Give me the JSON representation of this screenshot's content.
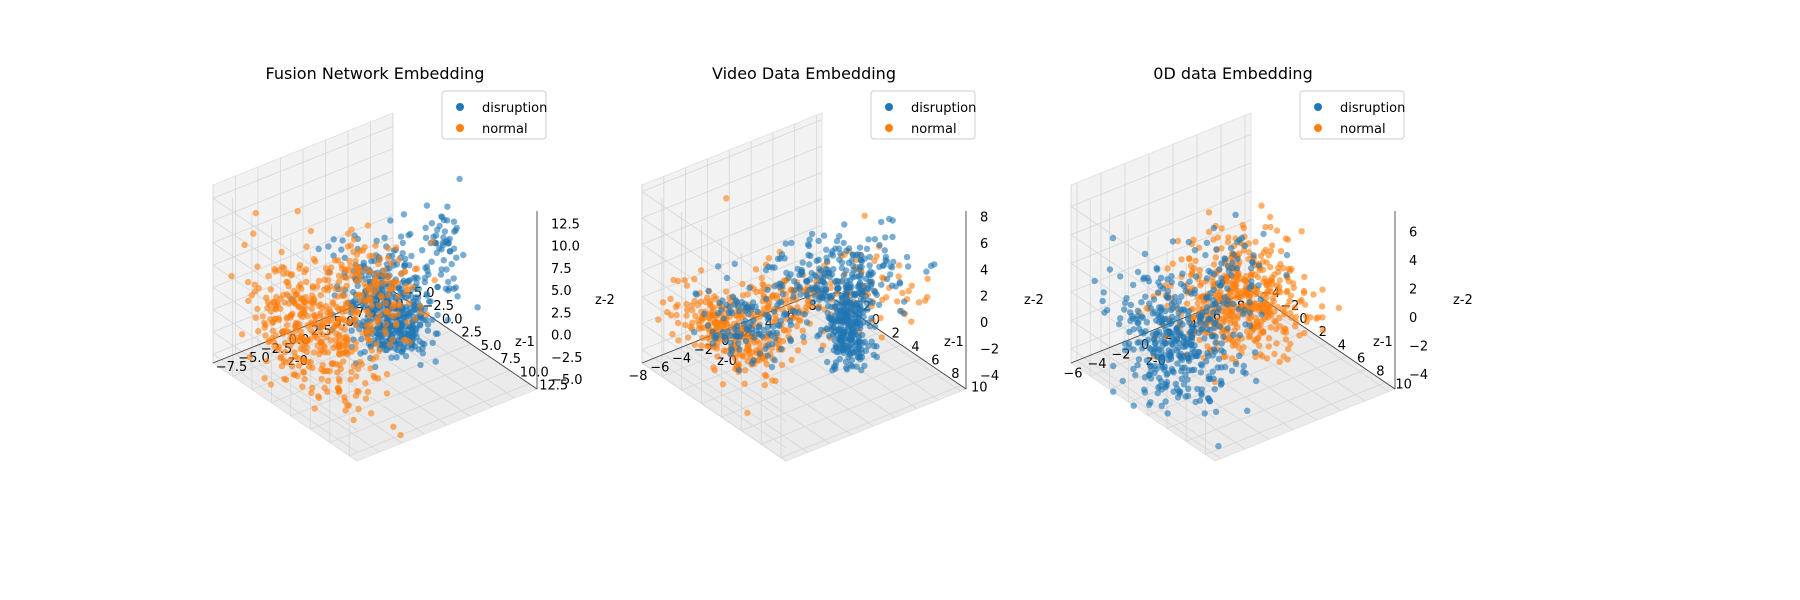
{
  "chart_data": [
    {
      "type": "scatter",
      "projection": "3d",
      "title": "Fusion Network Embedding",
      "xlabel": "z-0",
      "ylabel": "z-1",
      "zlabel": "z-2",
      "xlim": [
        -10,
        10
      ],
      "ylim": [
        -5,
        13.5
      ],
      "zlim": [
        -6,
        14
      ],
      "xticks": [
        "−7.5",
        "−5.0",
        "−2.5",
        "0.0",
        "2.5",
        "5.0",
        "7.5",
        "10.0"
      ],
      "yticks": [
        "−5.0",
        "−2.5",
        "0.0",
        "2.5",
        "5.0",
        "7.5",
        "10.0",
        "12.5"
      ],
      "zticks": [
        "−5.0",
        "−2.5",
        "0.0",
        "2.5",
        "5.0",
        "7.5",
        "10.0",
        "12.5"
      ],
      "grid": true,
      "legend_position": "upper-right",
      "series": [
        {
          "name": "disruption",
          "color": "#1f77b4",
          "clusters": [
            {
              "center": [
                4.5,
                1.5,
                -4.0
              ],
              "spread": [
                1.4,
                1.2,
                1.5
              ],
              "n": 220
            },
            {
              "center": [
                1.5,
                4.0,
                2.5
              ],
              "spread": [
                2.5,
                2.5,
                2.5
              ],
              "n": 260
            },
            {
              "center": [
                6.0,
                6.0,
                7.0
              ],
              "spread": [
                0.8,
                0.8,
                2.5
              ],
              "n": 50
            }
          ]
        },
        {
          "name": "normal",
          "color": "#ff7f0e",
          "clusters": [
            {
              "center": [
                -6.0,
                3.0,
                1.0
              ],
              "spread": [
                1.5,
                3.5,
                3.5
              ],
              "n": 360
            },
            {
              "center": [
                -2.0,
                6.0,
                5.0
              ],
              "spread": [
                2.0,
                2.0,
                3.0
              ],
              "n": 180
            }
          ]
        }
      ]
    },
    {
      "type": "scatter",
      "projection": "3d",
      "title": "Video Data Embedding",
      "xlabel": "z-0",
      "ylabel": "z-1",
      "zlabel": "z-2",
      "xlim": [
        -8,
        8.5
      ],
      "ylim": [
        -4,
        10.5
      ],
      "zlim": [
        -5,
        8.5
      ],
      "xticks": [
        "−8",
        "−6",
        "−4",
        "−2",
        "0",
        "2",
        "4",
        "6",
        "8"
      ],
      "yticks": [
        "−4",
        "−2",
        "0",
        "2",
        "4",
        "6",
        "8",
        "10"
      ],
      "zticks": [
        "−4",
        "−2",
        "0",
        "2",
        "4",
        "6",
        "8"
      ],
      "grid": true,
      "legend_position": "upper-right",
      "series": [
        {
          "name": "normal",
          "color": "#ff7f0e",
          "clusters": [
            {
              "center": [
                -6.5,
                3.0,
                0.5
              ],
              "spread": [
                1.0,
                2.5,
                1.2
              ],
              "n": 260
            },
            {
              "center": [
                -2.5,
                5.0,
                2.5
              ],
              "spread": [
                2.0,
                2.0,
                1.0
              ],
              "n": 140
            },
            {
              "center": [
                3.0,
                7.0,
                3.0
              ],
              "spread": [
                1.5,
                2.0,
                1.0
              ],
              "n": 60
            }
          ]
        },
        {
          "name": "disruption",
          "color": "#1f77b4",
          "clusters": [
            {
              "center": [
                -5.0,
                3.5,
                0.8
              ],
              "spread": [
                1.5,
                2.0,
                1.0
              ],
              "n": 120
            },
            {
              "center": [
                0.5,
                6.5,
                4.0
              ],
              "spread": [
                2.5,
                1.8,
                1.0
              ],
              "n": 240
            },
            {
              "center": [
                4.0,
                3.5,
                -2.5
              ],
              "spread": [
                0.8,
                0.8,
                1.8
              ],
              "n": 240
            }
          ]
        }
      ]
    },
    {
      "type": "scatter",
      "projection": "3d",
      "title": "0D data Embedding",
      "xlabel": "z-0",
      "ylabel": "z-1",
      "zlabel": "z-2",
      "xlim": [
        -6.5,
        8.5
      ],
      "ylim": [
        -4,
        11
      ],
      "zlim": [
        -5,
        7.5
      ],
      "xticks": [
        "−6",
        "−4",
        "−2",
        "0",
        "2",
        "4",
        "6",
        "8"
      ],
      "yticks": [
        "−4",
        "−2",
        "0",
        "2",
        "4",
        "6",
        "8",
        "10"
      ],
      "zticks": [
        "−4",
        "−2",
        "0",
        "2",
        "4",
        "6"
      ],
      "grid": true,
      "legend_position": "upper-right",
      "series": [
        {
          "name": "normal",
          "color": "#ff7f0e",
          "clusters": [
            {
              "center": [
                3.5,
                1.0,
                -2.0
              ],
              "spread": [
                2.5,
                2.0,
                1.5
              ],
              "n": 360
            },
            {
              "center": [
                1.5,
                4.0,
                1.0
              ],
              "spread": [
                1.5,
                2.0,
                2.0
              ],
              "n": 140
            }
          ]
        },
        {
          "name": "disruption",
          "color": "#1f77b4",
          "clusters": [
            {
              "center": [
                -4.0,
                3.5,
                -1.0
              ],
              "spread": [
                1.5,
                2.5,
                2.0
              ],
              "n": 360
            },
            {
              "center": [
                -1.5,
                6.0,
                3.5
              ],
              "spread": [
                1.5,
                1.5,
                2.0
              ],
              "n": 80
            }
          ]
        }
      ]
    }
  ]
}
